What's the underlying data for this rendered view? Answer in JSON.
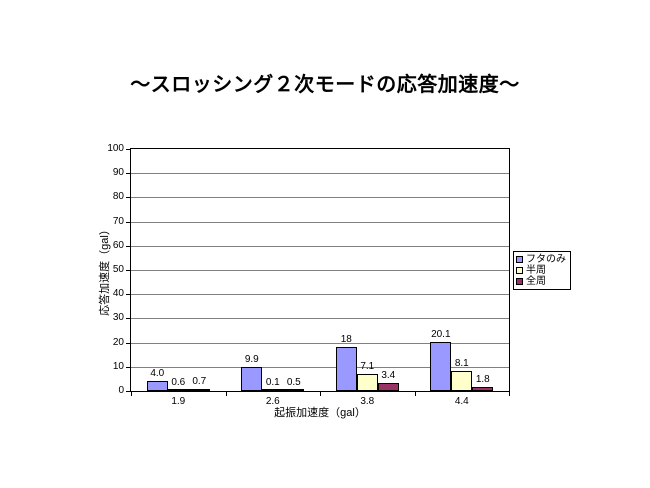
{
  "chart_data": {
    "type": "bar",
    "title": "～スロッシング２次モードの応答加速度～",
    "categories": [
      "1.9",
      "2.6",
      "3.8",
      "4.4"
    ],
    "series": [
      {
        "name": "フタのみ",
        "color": "#9999FF",
        "values": [
          4.0,
          9.9,
          18,
          20.1
        ],
        "labels": [
          "4.0",
          "9.9",
          "18",
          "20.1"
        ]
      },
      {
        "name": "半周",
        "color": "#FFFFCC",
        "values": [
          0.6,
          0.1,
          7.1,
          8.1
        ],
        "labels": [
          "0.6",
          "0.1",
          "7.1",
          "8.1"
        ]
      },
      {
        "name": "全周",
        "color": "#993366",
        "values": [
          0.7,
          0.5,
          3.4,
          1.8
        ],
        "labels": [
          "0.7",
          "0.5",
          "3.4",
          "1.8"
        ]
      }
    ],
    "xlabel": "起振加速度（gal）",
    "ylabel": "応答加速度（gal）",
    "ylim": [
      0,
      100
    ],
    "ytick_step": 10,
    "grid": true,
    "legend_position": "right",
    "colors": {
      "gridline": "#808080",
      "axis": "#000000",
      "background": "#FFFFFF"
    }
  }
}
